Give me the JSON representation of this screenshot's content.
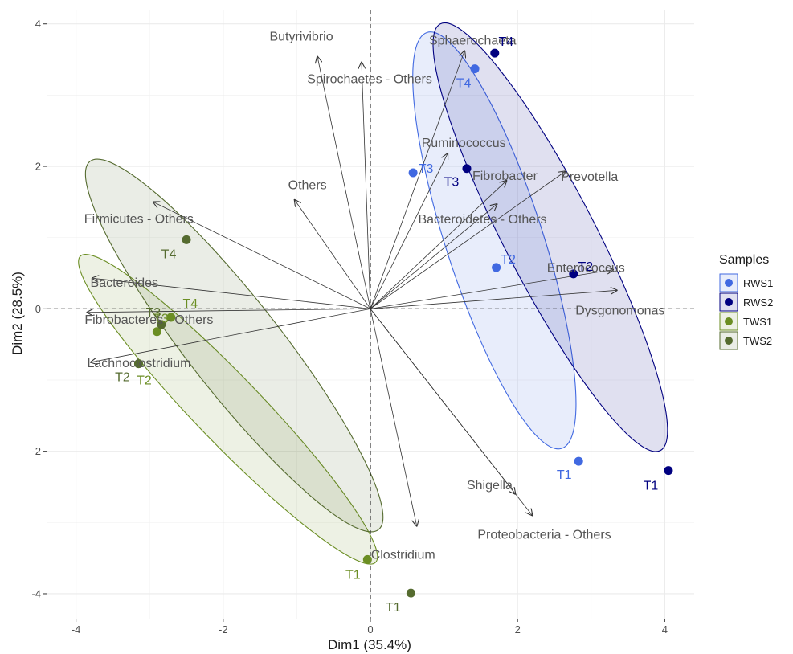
{
  "chart_data": {
    "type": "scatter",
    "subtype": "pca-biplot",
    "xlabel": "Dim1 (35.4%)",
    "ylabel": "Dim2 (28.5%)",
    "xlim": [
      -4.4,
      4.4
    ],
    "ylim": [
      -4.35,
      4.2
    ],
    "xticks": [
      -4,
      -2,
      0,
      2,
      4
    ],
    "yticks": [
      -4,
      -2,
      0,
      2,
      4
    ],
    "grid": true,
    "legend": {
      "title": "Samples",
      "position": "right"
    },
    "groups": [
      {
        "name": "RWS1",
        "color": "#4169E1",
        "fill": "#4169E1"
      },
      {
        "name": "RWS2",
        "color": "#000080",
        "fill": "#000080"
      },
      {
        "name": "TWS1",
        "color": "#6B8E23",
        "fill": "#6B8E23"
      },
      {
        "name": "TWS2",
        "color": "#556B2F",
        "fill": "#556B2F"
      }
    ],
    "points": [
      {
        "group": "RWS1",
        "label": "T1",
        "x": 2.83,
        "y": -2.14
      },
      {
        "group": "RWS1",
        "label": "T2",
        "x": 1.71,
        "y": 0.58
      },
      {
        "group": "RWS1",
        "label": "T3",
        "x": 0.58,
        "y": 1.91
      },
      {
        "group": "RWS1",
        "label": "T4",
        "x": 1.42,
        "y": 3.37
      },
      {
        "group": "RWS2",
        "label": "T1",
        "x": 4.05,
        "y": -2.27
      },
      {
        "group": "RWS2",
        "label": "T2",
        "x": 2.76,
        "y": 0.49
      },
      {
        "group": "RWS2",
        "label": "T3",
        "x": 1.31,
        "y": 1.97
      },
      {
        "group": "RWS2",
        "label": "T4",
        "x": 1.69,
        "y": 3.59
      },
      {
        "group": "TWS1",
        "label": "T1",
        "x": -0.04,
        "y": -3.52
      },
      {
        "group": "TWS1",
        "label": "T2",
        "x": -3.15,
        "y": -0.77
      },
      {
        "group": "TWS1",
        "label": "T3",
        "x": -2.9,
        "y": -0.32
      },
      {
        "group": "TWS1",
        "label": "T4",
        "x": -2.71,
        "y": -0.12
      },
      {
        "group": "TWS2",
        "label": "T1",
        "x": 0.55,
        "y": -3.99
      },
      {
        "group": "TWS2",
        "label": "T2",
        "x": -3.15,
        "y": -0.77
      },
      {
        "group": "TWS2",
        "label": "T3",
        "x": -2.84,
        "y": -0.22
      },
      {
        "group": "TWS2",
        "label": "T4",
        "x": -2.5,
        "y": 0.97
      }
    ],
    "ellipses": [
      {
        "group": "RWS1",
        "center": [
          1.7,
          0.9
        ],
        "endpoints": [
          [
            0.77,
            3.88
          ],
          [
            2.6,
            -1.96
          ]
        ],
        "minor": 0.67
      },
      {
        "group": "RWS2",
        "center": [
          2.45,
          0.9
        ],
        "endpoints": [
          [
            0.95,
            4.0
          ],
          [
            3.94,
            -1.99
          ]
        ],
        "minor": 0.63
      },
      {
        "group": "TWS1",
        "center": [
          -1.75,
          -1.51
        ],
        "endpoints": [
          [
            -3.94,
            0.74
          ],
          [
            0.07,
            -3.56
          ]
        ],
        "minor": 0.46
      },
      {
        "group": "TWS2",
        "center": [
          -1.82,
          -0.53
        ],
        "endpoints": [
          [
            -3.81,
            2.07
          ],
          [
            0.11,
            -3.1
          ]
        ],
        "minor": 0.64
      }
    ],
    "variables": [
      {
        "name": "Butyrivibrio",
        "x": -0.72,
        "y": 3.54
      },
      {
        "name": "Spirochaetes - Others",
        "x": -0.12,
        "y": 3.46
      },
      {
        "name": "Sphaerochaeta",
        "x": 1.28,
        "y": 3.62
      },
      {
        "name": "Ruminococcus",
        "x": 1.05,
        "y": 2.18
      },
      {
        "name": "Fibrobacter",
        "x": 1.85,
        "y": 1.8
      },
      {
        "name": "Prevotella",
        "x": 2.65,
        "y": 1.93
      },
      {
        "name": "Bacteroidetes - Others",
        "x": 1.72,
        "y": 1.47
      },
      {
        "name": "Others",
        "x": -1.03,
        "y": 1.53
      },
      {
        "name": "Firmicutes - Others",
        "x": -2.95,
        "y": 1.5
      },
      {
        "name": "Bacteroides",
        "x": -3.78,
        "y": 0.43
      },
      {
        "name": "Fibrobacteres - Others",
        "x": -3.85,
        "y": -0.05
      },
      {
        "name": "Lachnoclostridium",
        "x": -3.8,
        "y": -0.75
      },
      {
        "name": "Enterococcus",
        "x": 3.3,
        "y": 0.55
      },
      {
        "name": "Dysgonomonas",
        "x": 3.35,
        "y": 0.26
      },
      {
        "name": "Shigella",
        "x": 1.97,
        "y": -2.6
      },
      {
        "name": "Proteobacteria - Others",
        "x": 2.2,
        "y": -2.9
      },
      {
        "name": "Clostridium",
        "x": 0.63,
        "y": -3.05
      }
    ]
  }
}
